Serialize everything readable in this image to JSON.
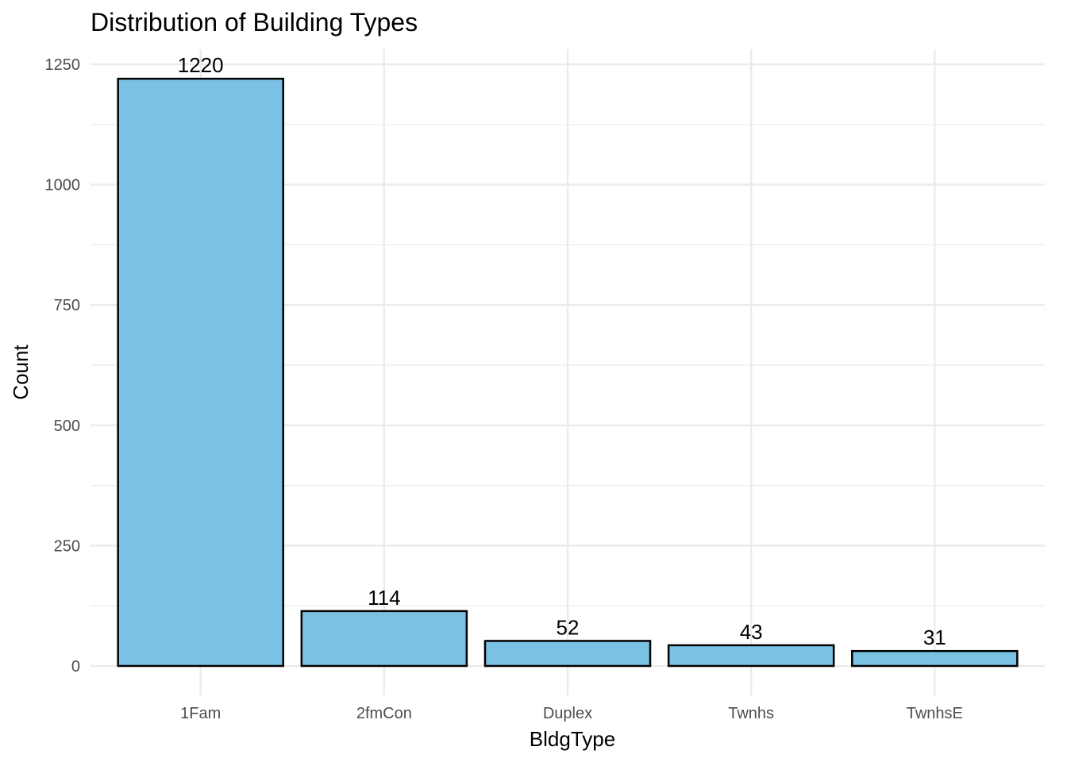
{
  "chart_data": {
    "type": "bar",
    "title": "Distribution of Building Types",
    "xlabel": "BldgType",
    "ylabel": "Count",
    "categories": [
      "1Fam",
      "2fmCon",
      "Duplex",
      "Twnhs",
      "TwnhsE"
    ],
    "values": [
      1220,
      114,
      52,
      43,
      31
    ],
    "data_labels": [
      "1220",
      "114",
      "52",
      "43",
      "31"
    ],
    "ylim": [
      0,
      1250
    ],
    "yticks": [
      0,
      250,
      500,
      750,
      1000,
      1250
    ],
    "ytick_labels": [
      "0",
      "250",
      "500",
      "750",
      "1000",
      "1250"
    ],
    "grid": true,
    "legend": "none",
    "colors": {
      "bar_fill": "#7ac2e4",
      "bar_stroke": "#000000",
      "grid": "#ebebeb"
    }
  }
}
